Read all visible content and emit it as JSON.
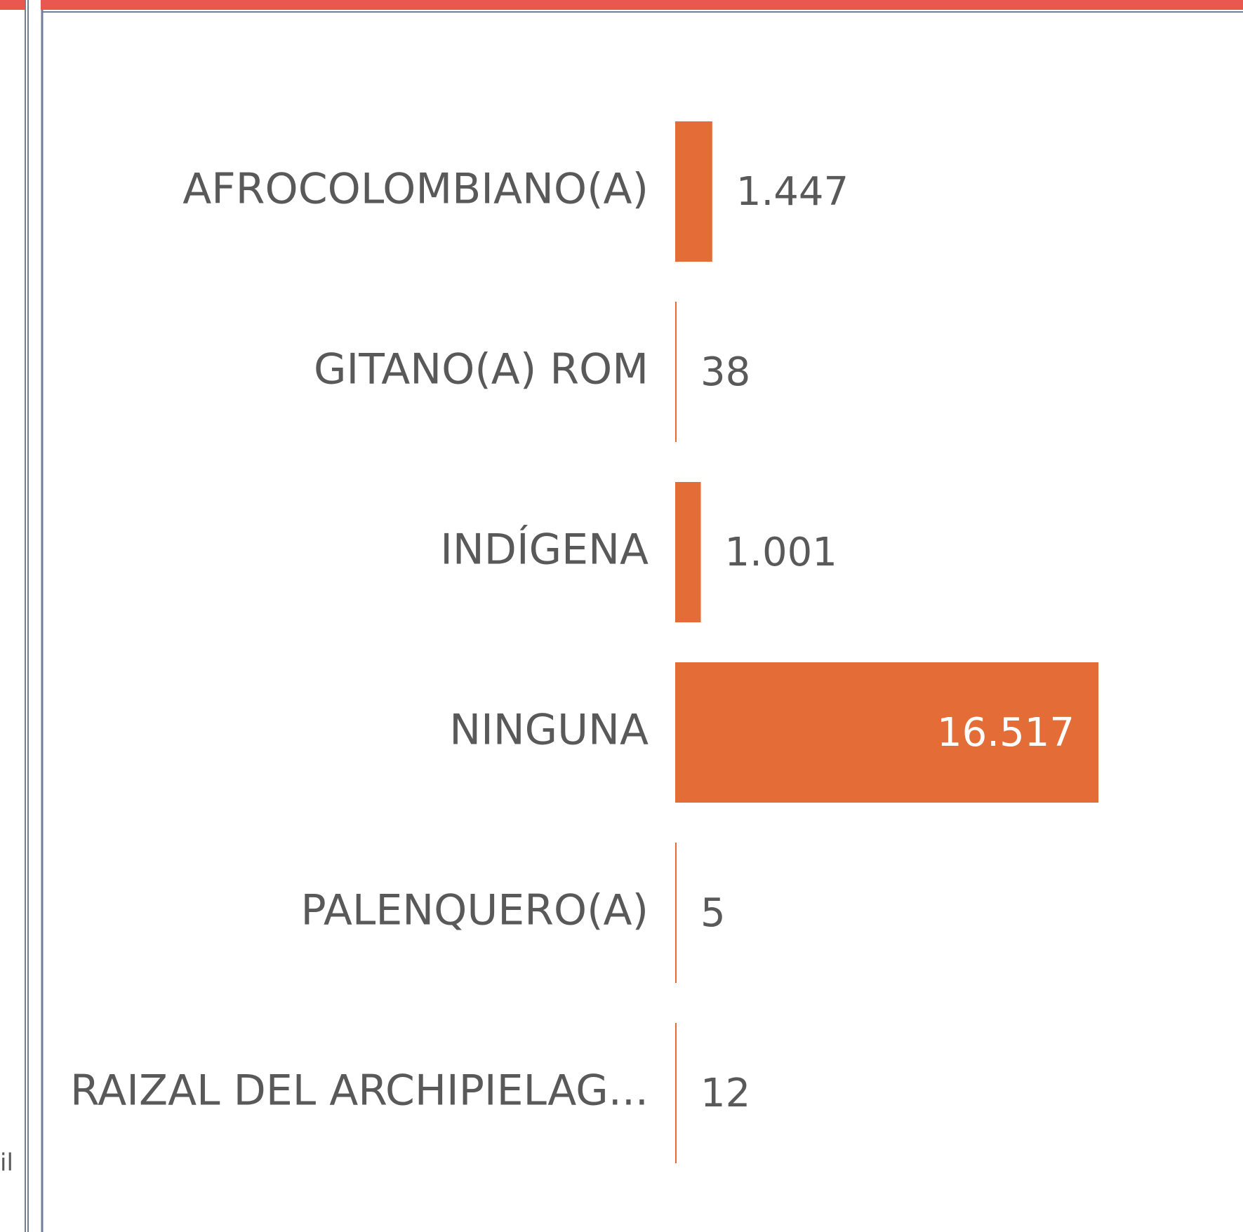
{
  "left_panel": {
    "text": "il"
  },
  "chart_data": {
    "type": "bar",
    "orientation": "horizontal",
    "categories": [
      "AFROCOLOMBIANO(A)",
      "GITANO(A) ROM",
      "INDÍGENA",
      "NINGUNA",
      "PALENQUERO(A)",
      "RAIZAL DEL ARCHIPIELAG..."
    ],
    "values": [
      1447,
      38,
      1001,
      16517,
      5,
      12
    ],
    "value_labels": [
      "1.447",
      "38",
      "1.001",
      "16.517",
      "5",
      "12"
    ],
    "color": "#e46c37",
    "xlim": [
      0,
      16517
    ]
  }
}
